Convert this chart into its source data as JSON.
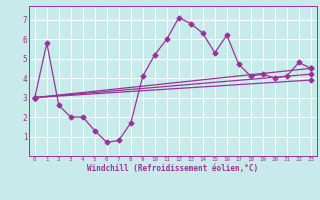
{
  "background_color": "#c8eaea",
  "line_color": "#993399",
  "grid_color": "#ffffff",
  "xlabel": "Windchill (Refroidissement éolien,°C)",
  "xlim": [
    -0.5,
    23.5
  ],
  "ylim": [
    0,
    7.7
  ],
  "yticks": [
    1,
    2,
    3,
    4,
    5,
    6,
    7
  ],
  "xticks": [
    0,
    1,
    2,
    3,
    4,
    5,
    6,
    7,
    8,
    9,
    10,
    11,
    12,
    13,
    14,
    15,
    16,
    17,
    18,
    19,
    20,
    21,
    22,
    23
  ],
  "main_series_x": [
    0,
    1,
    2,
    3,
    4,
    5,
    6,
    7,
    8,
    9,
    10,
    11,
    12,
    13,
    14,
    15,
    16,
    17,
    18,
    19,
    20,
    21,
    22,
    23
  ],
  "main_series_y": [
    3.0,
    5.8,
    2.6,
    2.0,
    2.0,
    1.3,
    0.7,
    0.8,
    1.7,
    4.1,
    5.2,
    6.0,
    7.1,
    6.8,
    6.3,
    5.3,
    6.2,
    4.7,
    4.1,
    4.2,
    4.0,
    4.1,
    4.8,
    4.5
  ],
  "trend_lines": [
    {
      "x": [
        0,
        23
      ],
      "y": [
        3.0,
        4.5
      ]
    },
    {
      "x": [
        0,
        23
      ],
      "y": [
        3.0,
        4.2
      ]
    },
    {
      "x": [
        0,
        23
      ],
      "y": [
        3.0,
        3.9
      ]
    }
  ],
  "marker": "D",
  "markersize": 2.5,
  "linewidth": 0.9,
  "tick_fontsize": 5,
  "xlabel_fontsize": 5.5
}
